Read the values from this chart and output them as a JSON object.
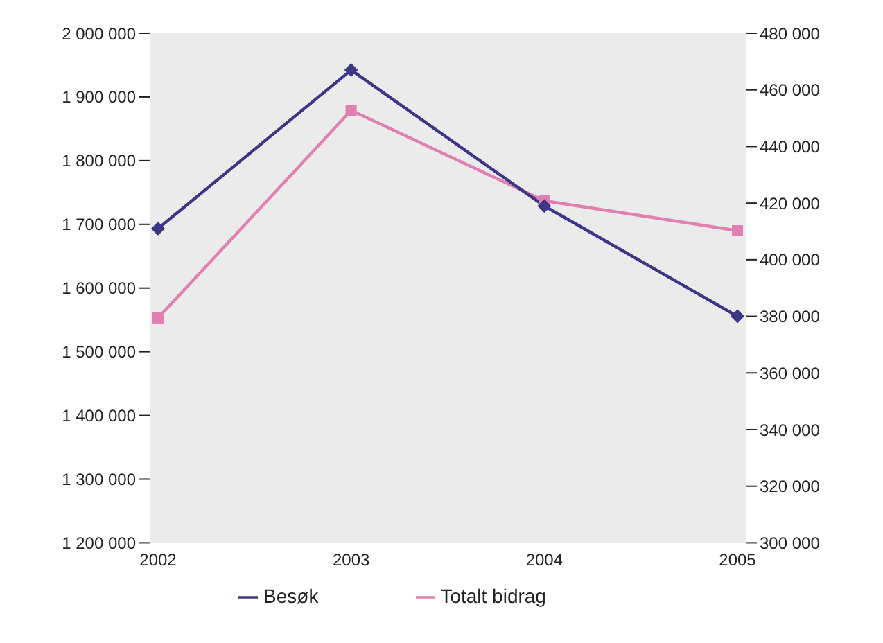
{
  "chart_data": {
    "type": "line",
    "categories": [
      "2002",
      "2003",
      "2004",
      "2005"
    ],
    "series": [
      {
        "name": "Totalt bidrag",
        "color": "#e07fb0",
        "marker": "square",
        "values": [
          1553000,
          1879000,
          1737000,
          1690000
        ]
      },
      {
        "name": "Besøk",
        "color": "#3d3585",
        "marker": "diamond",
        "axis": "y2",
        "values": [
          411000,
          467000,
          419000,
          380000
        ]
      }
    ],
    "ylim": [
      1200000,
      2000000
    ],
    "yticks": [
      {
        "value": 1200000,
        "label": "1 200 000"
      },
      {
        "value": 1300000,
        "label": "1 300 000"
      },
      {
        "value": 1400000,
        "label": "1 400 000"
      },
      {
        "value": 1500000,
        "label": "1 500 000"
      },
      {
        "value": 1600000,
        "label": "1 600 000"
      },
      {
        "value": 1700000,
        "label": "1 700 000"
      },
      {
        "value": 1800000,
        "label": "1 800 000"
      },
      {
        "value": 1900000,
        "label": "1 900 000"
      },
      {
        "value": 2000000,
        "label": "2 000 000"
      }
    ],
    "y2lim": [
      300000,
      480000
    ],
    "y2ticks": [
      {
        "value": 300000,
        "label": "300 000"
      },
      {
        "value": 320000,
        "label": "320 000"
      },
      {
        "value": 340000,
        "label": "340 000"
      },
      {
        "value": 360000,
        "label": "360 000"
      },
      {
        "value": 380000,
        "label": "380 000"
      },
      {
        "value": 400000,
        "label": "400 000"
      },
      {
        "value": 420000,
        "label": "420 000"
      },
      {
        "value": 440000,
        "label": "440 000"
      },
      {
        "value": 460000,
        "label": "460 000"
      },
      {
        "value": 480000,
        "label": "480 000"
      }
    ],
    "legend": "bottom",
    "line_style": "solid"
  }
}
